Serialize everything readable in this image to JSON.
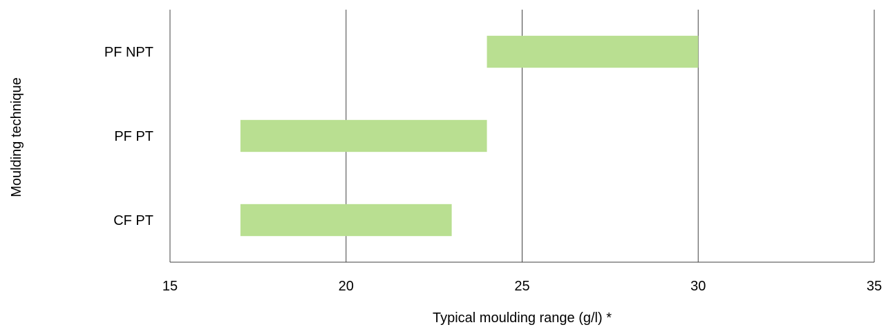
{
  "colors": {
    "bar": "#b9df91",
    "gridline": "#404040",
    "axis": "#404040",
    "background": "#ffffff",
    "text": "#000000"
  },
  "chart_data": {
    "type": "bar",
    "orientation": "horizontal",
    "title": "",
    "xlabel": "Typical moulding range (g/l) *",
    "ylabel": "Moulding technique",
    "xlim": [
      15,
      35
    ],
    "xticks": [
      15,
      20,
      25,
      30,
      35
    ],
    "categories": [
      "PF NPT",
      "PF PT",
      "CF PT"
    ],
    "ranges": [
      {
        "category": "PF NPT",
        "start": 24,
        "end": 30
      },
      {
        "category": "PF PT",
        "start": 17,
        "end": 24
      },
      {
        "category": "CF PT",
        "start": 17,
        "end": 23
      }
    ],
    "grid": true,
    "grid_axis": "x",
    "legend": "none"
  }
}
